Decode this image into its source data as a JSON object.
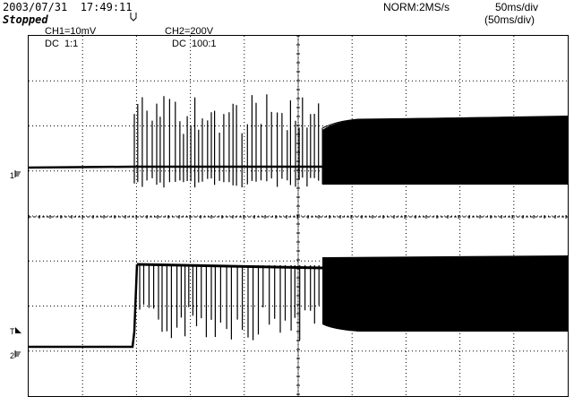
{
  "header": {
    "timestamp": "2003/07/31  17:49:11",
    "status": "Stopped",
    "acquisition_mode": "NORM:2MS/s",
    "time_div": "50ms/div",
    "time_div_zoom": "(50ms/div)"
  },
  "channels": {
    "ch1": {
      "scale": "CH1=10mV",
      "coupling": "DC  1:1",
      "marker": "1"
    },
    "ch2": {
      "scale": "CH2=200V",
      "coupling": "DC  100:1",
      "marker": "2"
    }
  },
  "markers": {
    "trigger_level": "T"
  },
  "icons": {
    "trigger_position": "trigger-position-icon",
    "ch1_ground": "ground-marker-icon",
    "ch2_ground": "ground-marker-icon"
  },
  "colors": {
    "background": "#ffffff",
    "trace": "#000000",
    "grid": "#000000"
  }
}
